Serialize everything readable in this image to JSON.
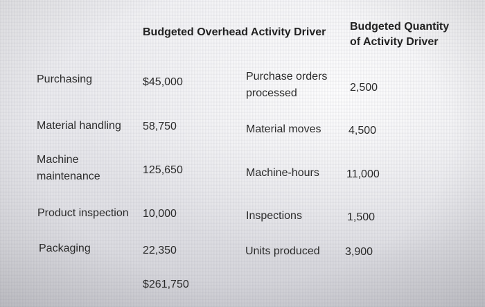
{
  "headers": {
    "col2": "Budgeted Overhead Activity Driver",
    "col4_line1": "Budgeted Quantity",
    "col4_line2": "of Activity Driver"
  },
  "rows": [
    {
      "activity": [
        "Purchasing"
      ],
      "cost": "$45,000",
      "driver": [
        "Purchase orders",
        "processed"
      ],
      "quantity": "2,500"
    },
    {
      "activity": [
        "Material handling"
      ],
      "cost": "58,750",
      "driver": [
        "Material moves"
      ],
      "quantity": "4,500"
    },
    {
      "activity": [
        "Machine",
        "maintenance"
      ],
      "cost": "125,650",
      "driver": [
        "Machine-hours"
      ],
      "quantity": "11,000"
    },
    {
      "activity": [
        "Product inspection"
      ],
      "cost": "10,000",
      "driver": [
        "Inspections"
      ],
      "quantity": "1,500"
    },
    {
      "activity": [
        "Packaging"
      ],
      "cost": "22,350",
      "driver": [
        "Units produced"
      ],
      "quantity": "3,900"
    }
  ],
  "total": "$261,750"
}
